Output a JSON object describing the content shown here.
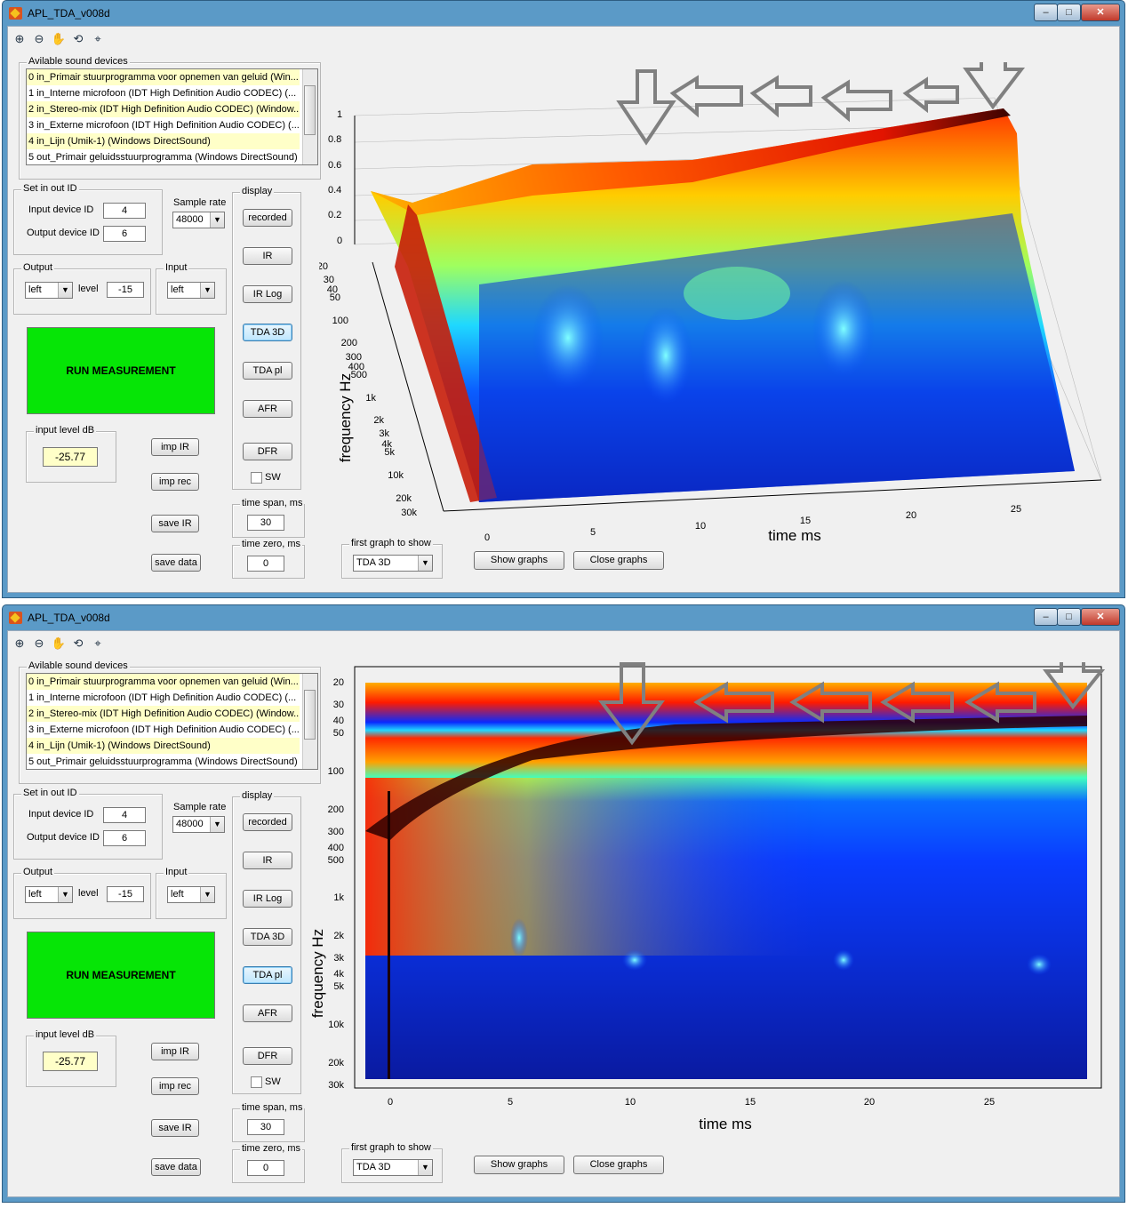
{
  "windows": [
    {
      "id": "w1",
      "title": "APL_TDA_v008d",
      "devices_label": "Avilable sound devices",
      "devices": [
        "0 in_Primair stuurprogramma voor opnemen van geluid (Win...",
        "1 in_Interne microfoon (IDT High Definition Audio CODEC) (...",
        "2 in_Stereo-mix (IDT High Definition Audio CODEC) (Window...",
        "3 in_Externe microfoon (IDT High Definition Audio CODEC) (...",
        "4 in_Lijn (Umik-1) (Windows DirectSound)",
        "5 out_Primair geluidsstuurprogramma (Windows DirectSound)"
      ],
      "set_label": "Set in out ID",
      "input_id_label": "Input device ID",
      "input_id": "4",
      "output_id_label": "Output device ID",
      "output_id": "6",
      "sample_rate_label": "Sample rate",
      "sample_rate": "48000",
      "output_label": "Output",
      "output_channel": "left",
      "level_label": "level",
      "level": "-15",
      "input_label": "Input",
      "input_channel": "left",
      "run_label": "RUN MEASUREMENT",
      "input_level_label": "input level dB",
      "input_level": "-25.77",
      "imp_ir": "imp IR",
      "imp_rec": "imp rec",
      "save_ir": "save IR",
      "save_data": "save data",
      "display_label": "display",
      "display_buttons": [
        "recorded",
        "IR",
        "IR Log",
        "TDA 3D",
        "TDA pl",
        "AFR",
        "DFR"
      ],
      "selected_display": 3,
      "sw_label": "SW",
      "time_span_label": "time span, ms",
      "time_span": "30",
      "time_zero_label": "time zero, ms",
      "time_zero": "0",
      "first_graph_label": "first graph to show",
      "first_graph": "TDA 3D",
      "show_graphs": "Show graphs",
      "close_graphs": "Close graphs",
      "plot": {
        "xlabel": "time   ms",
        "ylabel": "frequency   Hz",
        "x_ticks": [
          "0",
          "5",
          "10",
          "15",
          "20",
          "25"
        ],
        "y_ticks": [
          "20",
          "30",
          "40",
          "50",
          "100",
          "200",
          "300",
          "400",
          "500",
          "1k",
          "2k",
          "3k",
          "4k",
          "5k",
          "10k",
          "20k",
          "30k"
        ],
        "z_ticks": [
          "1",
          "0.8",
          "0.6",
          "0.4",
          "0.2",
          "0"
        ]
      }
    },
    {
      "id": "w2",
      "title": "APL_TDA_v008d",
      "devices_label": "Avilable sound devices",
      "devices": [
        "0 in_Primair stuurprogramma voor opnemen van geluid (Win...",
        "1 in_Interne microfoon (IDT High Definition Audio CODEC) (...",
        "2 in_Stereo-mix (IDT High Definition Audio CODEC) (Window...",
        "3 in_Externe microfoon (IDT High Definition Audio CODEC) (...",
        "4 in_Lijn (Umik-1) (Windows DirectSound)",
        "5 out_Primair geluidsstuurprogramma (Windows DirectSound)"
      ],
      "set_label": "Set in out ID",
      "input_id_label": "Input device ID",
      "input_id": "4",
      "output_id_label": "Output device ID",
      "output_id": "6",
      "sample_rate_label": "Sample rate",
      "sample_rate": "48000",
      "output_label": "Output",
      "output_channel": "left",
      "level_label": "level",
      "level": "-15",
      "input_label": "Input",
      "input_channel": "left",
      "run_label": "RUN MEASUREMENT",
      "input_level_label": "input level dB",
      "input_level": "-25.77",
      "imp_ir": "imp IR",
      "imp_rec": "imp rec",
      "save_ir": "save IR",
      "save_data": "save data",
      "display_label": "display",
      "display_buttons": [
        "recorded",
        "IR",
        "IR Log",
        "TDA 3D",
        "TDA pl",
        "AFR",
        "DFR"
      ],
      "selected_display": 4,
      "sw_label": "SW",
      "time_span_label": "time span, ms",
      "time_span": "30",
      "time_zero_label": "time zero, ms",
      "time_zero": "0",
      "first_graph_label": "first graph to show",
      "first_graph": "TDA 3D",
      "show_graphs": "Show graphs",
      "close_graphs": "Close graphs",
      "plot": {
        "xlabel": "time   ms",
        "ylabel": "frequency   Hz",
        "x_ticks": [
          "0",
          "5",
          "10",
          "15",
          "20",
          "25"
        ],
        "y_ticks": [
          "20",
          "30",
          "40",
          "50",
          "100",
          "200",
          "300",
          "400",
          "500",
          "1k",
          "2k",
          "3k",
          "4k",
          "5k",
          "10k",
          "20k",
          "30k"
        ]
      }
    }
  ],
  "colors": {
    "run_button": "#06e506",
    "input_level_bg": "#ffffc8",
    "listbox_highlight": "#ffffc8",
    "titlebar": "#5b9ac7"
  }
}
